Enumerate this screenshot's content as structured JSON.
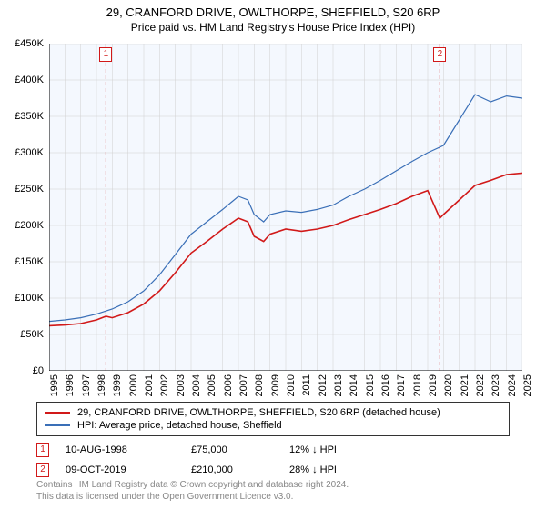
{
  "title_line1": "29, CRANFORD DRIVE, OWLTHORPE, SHEFFIELD, S20 6RP",
  "title_line2": "Price paid vs. HM Land Registry's House Price Index (HPI)",
  "chart": {
    "type": "line",
    "background_color": "#f4f8fe",
    "grid_color": "#d0d0d0",
    "axis_color": "#000000",
    "ylim": [
      0,
      450000
    ],
    "ytick_step": 50000,
    "ytick_labels": [
      "£0",
      "£50K",
      "£100K",
      "£150K",
      "£200K",
      "£250K",
      "£300K",
      "£350K",
      "£400K",
      "£450K"
    ],
    "x_years": [
      1995,
      1996,
      1997,
      1998,
      1999,
      2000,
      2001,
      2002,
      2003,
      2004,
      2005,
      2006,
      2007,
      2008,
      2009,
      2010,
      2011,
      2012,
      2013,
      2014,
      2015,
      2016,
      2017,
      2018,
      2019,
      2020,
      2021,
      2022,
      2023,
      2024,
      2025
    ],
    "series": [
      {
        "name": "price_paid",
        "color": "#d11919",
        "width": 1.6,
        "points": [
          [
            1995,
            62000
          ],
          [
            1996,
            63000
          ],
          [
            1997,
            65000
          ],
          [
            1998,
            70000
          ],
          [
            1998.6,
            75000
          ],
          [
            1999,
            73000
          ],
          [
            2000,
            80000
          ],
          [
            2001,
            92000
          ],
          [
            2002,
            110000
          ],
          [
            2003,
            135000
          ],
          [
            2004,
            162000
          ],
          [
            2005,
            178000
          ],
          [
            2006,
            195000
          ],
          [
            2007,
            210000
          ],
          [
            2007.6,
            205000
          ],
          [
            2008,
            185000
          ],
          [
            2008.6,
            178000
          ],
          [
            2009,
            188000
          ],
          [
            2010,
            195000
          ],
          [
            2011,
            192000
          ],
          [
            2012,
            195000
          ],
          [
            2013,
            200000
          ],
          [
            2014,
            208000
          ],
          [
            2015,
            215000
          ],
          [
            2016,
            222000
          ],
          [
            2017,
            230000
          ],
          [
            2018,
            240000
          ],
          [
            2019,
            248000
          ],
          [
            2019.77,
            210000
          ],
          [
            2020,
            215000
          ],
          [
            2021,
            235000
          ],
          [
            2022,
            255000
          ],
          [
            2023,
            262000
          ],
          [
            2024,
            270000
          ],
          [
            2025,
            272000
          ]
        ]
      },
      {
        "name": "hpi",
        "color": "#3a6fb7",
        "width": 1.2,
        "points": [
          [
            1995,
            68000
          ],
          [
            1996,
            70000
          ],
          [
            1997,
            73000
          ],
          [
            1998,
            78000
          ],
          [
            1999,
            85000
          ],
          [
            2000,
            95000
          ],
          [
            2001,
            110000
          ],
          [
            2002,
            132000
          ],
          [
            2003,
            160000
          ],
          [
            2004,
            188000
          ],
          [
            2005,
            205000
          ],
          [
            2006,
            222000
          ],
          [
            2007,
            240000
          ],
          [
            2007.6,
            235000
          ],
          [
            2008,
            215000
          ],
          [
            2008.6,
            205000
          ],
          [
            2009,
            215000
          ],
          [
            2010,
            220000
          ],
          [
            2011,
            218000
          ],
          [
            2012,
            222000
          ],
          [
            2013,
            228000
          ],
          [
            2014,
            240000
          ],
          [
            2015,
            250000
          ],
          [
            2016,
            262000
          ],
          [
            2017,
            275000
          ],
          [
            2018,
            288000
          ],
          [
            2019,
            300000
          ],
          [
            2020,
            310000
          ],
          [
            2021,
            345000
          ],
          [
            2022,
            380000
          ],
          [
            2023,
            370000
          ],
          [
            2024,
            378000
          ],
          [
            2025,
            375000
          ]
        ]
      }
    ],
    "sale_markers": [
      {
        "num": "1",
        "x": 1998.6,
        "color": "#d11919"
      },
      {
        "num": "2",
        "x": 2019.77,
        "color": "#d11919"
      }
    ],
    "sale_marker_dash": "4,3"
  },
  "legend": [
    {
      "color": "#d11919",
      "label": "29, CRANFORD DRIVE, OWLTHORPE, SHEFFIELD, S20 6RP (detached house)"
    },
    {
      "color": "#3a6fb7",
      "label": "HPI: Average price, detached house, Sheffield"
    }
  ],
  "sales": [
    {
      "num": "1",
      "color": "#d11919",
      "date": "10-AUG-1998",
      "price": "£75,000",
      "diff": "12% ↓ HPI"
    },
    {
      "num": "2",
      "color": "#d11919",
      "date": "09-OCT-2019",
      "price": "£210,000",
      "diff": "28% ↓ HPI"
    }
  ],
  "footer": {
    "line1": "Contains HM Land Registry data © Crown copyright and database right 2024.",
    "line2": "This data is licensed under the Open Government Licence v3.0."
  }
}
